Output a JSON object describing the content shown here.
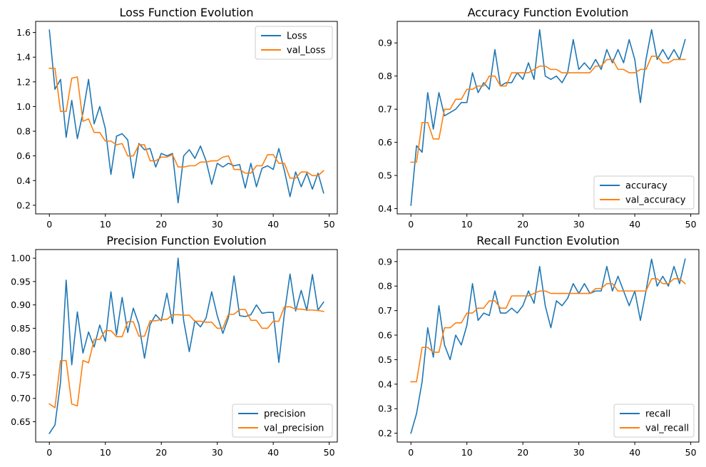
{
  "colors": {
    "series1": "#1f77b4",
    "series2": "#ff7f0e"
  },
  "chart_data": [
    {
      "type": "line",
      "title": "Loss Function Evolution",
      "xlim": [
        -2.45,
        51.45
      ],
      "ylim": [
        0.13,
        1.69
      ],
      "xticks": [
        0,
        10,
        20,
        30,
        40,
        50
      ],
      "yticks": [
        0.2,
        0.4,
        0.6,
        0.8,
        1.0,
        1.2,
        1.4,
        1.6
      ],
      "ytick_labels": [
        "0.2",
        "0.4",
        "0.6",
        "0.8",
        "1.0",
        "1.2",
        "1.4",
        "1.6"
      ],
      "legend_loc": "upper-right",
      "series": [
        {
          "name": "Loss",
          "values": [
            1.62,
            1.14,
            1.22,
            0.75,
            1.05,
            0.74,
            0.95,
            1.22,
            0.86,
            1.0,
            0.82,
            0.45,
            0.76,
            0.78,
            0.73,
            0.42,
            0.7,
            0.65,
            0.66,
            0.51,
            0.62,
            0.6,
            0.62,
            0.22,
            0.6,
            0.65,
            0.58,
            0.68,
            0.56,
            0.37,
            0.54,
            0.51,
            0.54,
            0.52,
            0.53,
            0.34,
            0.54,
            0.35,
            0.5,
            0.52,
            0.49,
            0.66,
            0.48,
            0.27,
            0.47,
            0.35,
            0.46,
            0.33,
            0.46,
            0.3
          ]
        },
        {
          "name": "val_Loss",
          "values": [
            1.31,
            1.31,
            0.96,
            0.96,
            1.23,
            1.24,
            0.88,
            0.9,
            0.79,
            0.79,
            0.72,
            0.72,
            0.69,
            0.7,
            0.6,
            0.6,
            0.69,
            0.69,
            0.56,
            0.56,
            0.59,
            0.59,
            0.61,
            0.51,
            0.51,
            0.52,
            0.52,
            0.55,
            0.55,
            0.56,
            0.56,
            0.59,
            0.6,
            0.49,
            0.49,
            0.46,
            0.46,
            0.52,
            0.52,
            0.61,
            0.61,
            0.54,
            0.54,
            0.42,
            0.42,
            0.47,
            0.47,
            0.44,
            0.44,
            0.48
          ]
        }
      ]
    },
    {
      "type": "line",
      "title": "Accuracy Function Evolution",
      "xlim": [
        -2.45,
        51.45
      ],
      "ylim": [
        0.384,
        0.965
      ],
      "xticks": [
        0,
        10,
        20,
        30,
        40,
        50
      ],
      "yticks": [
        0.4,
        0.5,
        0.6,
        0.7,
        0.8,
        0.9
      ],
      "ytick_labels": [
        "0.4",
        "0.5",
        "0.6",
        "0.7",
        "0.8",
        "0.9"
      ],
      "legend_loc": "lower-right",
      "series": [
        {
          "name": "accuracy",
          "values": [
            0.41,
            0.59,
            0.57,
            0.75,
            0.64,
            0.75,
            0.68,
            0.69,
            0.7,
            0.72,
            0.72,
            0.81,
            0.75,
            0.78,
            0.76,
            0.88,
            0.77,
            0.78,
            0.78,
            0.81,
            0.79,
            0.84,
            0.79,
            0.94,
            0.8,
            0.79,
            0.8,
            0.78,
            0.81,
            0.91,
            0.82,
            0.84,
            0.82,
            0.85,
            0.82,
            0.88,
            0.84,
            0.88,
            0.84,
            0.91,
            0.85,
            0.72,
            0.85,
            0.94,
            0.85,
            0.88,
            0.85,
            0.88,
            0.85,
            0.91
          ]
        },
        {
          "name": "val_accuracy",
          "values": [
            0.54,
            0.54,
            0.66,
            0.66,
            0.61,
            0.61,
            0.7,
            0.7,
            0.73,
            0.73,
            0.76,
            0.76,
            0.77,
            0.77,
            0.8,
            0.8,
            0.77,
            0.77,
            0.81,
            0.81,
            0.81,
            0.81,
            0.82,
            0.83,
            0.83,
            0.82,
            0.82,
            0.81,
            0.81,
            0.81,
            0.81,
            0.81,
            0.81,
            0.83,
            0.83,
            0.85,
            0.85,
            0.82,
            0.82,
            0.81,
            0.81,
            0.82,
            0.82,
            0.86,
            0.86,
            0.84,
            0.84,
            0.85,
            0.85,
            0.85
          ]
        }
      ]
    },
    {
      "type": "line",
      "title": "Precision Function Evolution",
      "xlim": [
        -2.45,
        51.45
      ],
      "ylim": [
        0.6065,
        1.0185
      ],
      "xticks": [
        0,
        10,
        20,
        30,
        40,
        50
      ],
      "yticks": [
        0.65,
        0.7,
        0.75,
        0.8,
        0.85,
        0.9,
        0.95,
        1.0
      ],
      "ytick_labels": [
        "0.65",
        "0.70",
        "0.75",
        "0.80",
        "0.85",
        "0.90",
        "0.95",
        "1.00"
      ],
      "legend_loc": "lower-right",
      "series": [
        {
          "name": "precision",
          "values": [
            0.625,
            0.643,
            0.735,
            0.953,
            0.772,
            0.885,
            0.797,
            0.842,
            0.81,
            0.857,
            0.822,
            0.928,
            0.836,
            0.916,
            0.841,
            0.893,
            0.858,
            0.786,
            0.858,
            0.879,
            0.866,
            0.925,
            0.86,
            1.0,
            0.866,
            0.8,
            0.866,
            0.853,
            0.872,
            0.928,
            0.877,
            0.839,
            0.873,
            0.962,
            0.877,
            0.875,
            0.879,
            0.9,
            0.882,
            0.884,
            0.884,
            0.777,
            0.882,
            0.966,
            0.887,
            0.931,
            0.888,
            0.965,
            0.889,
            0.906
          ]
        },
        {
          "name": "val_precision",
          "values": [
            0.688,
            0.68,
            0.781,
            0.781,
            0.688,
            0.684,
            0.781,
            0.776,
            0.826,
            0.826,
            0.845,
            0.845,
            0.832,
            0.832,
            0.864,
            0.864,
            0.833,
            0.833,
            0.866,
            0.866,
            0.869,
            0.869,
            0.879,
            0.879,
            0.878,
            0.878,
            0.865,
            0.865,
            0.863,
            0.863,
            0.85,
            0.85,
            0.88,
            0.88,
            0.89,
            0.89,
            0.867,
            0.867,
            0.85,
            0.85,
            0.865,
            0.865,
            0.896,
            0.896,
            0.891,
            0.891,
            0.889,
            0.889,
            0.888,
            0.886
          ]
        }
      ]
    },
    {
      "type": "line",
      "title": "Recall Function Evolution",
      "xlim": [
        -2.45,
        51.45
      ],
      "ylim": [
        0.164,
        0.949
      ],
      "xticks": [
        0,
        10,
        20,
        30,
        40,
        50
      ],
      "yticks": [
        0.2,
        0.3,
        0.4,
        0.5,
        0.6,
        0.7,
        0.8,
        0.9
      ],
      "ytick_labels": [
        "0.2",
        "0.3",
        "0.4",
        "0.5",
        "0.6",
        "0.7",
        "0.8",
        "0.9"
      ],
      "legend_loc": "lower-right",
      "series": [
        {
          "name": "recall",
          "values": [
            0.2,
            0.28,
            0.41,
            0.63,
            0.51,
            0.72,
            0.56,
            0.5,
            0.6,
            0.56,
            0.64,
            0.81,
            0.66,
            0.69,
            0.68,
            0.78,
            0.69,
            0.69,
            0.71,
            0.69,
            0.72,
            0.78,
            0.73,
            0.88,
            0.72,
            0.63,
            0.74,
            0.72,
            0.75,
            0.81,
            0.77,
            0.81,
            0.77,
            0.78,
            0.78,
            0.88,
            0.78,
            0.84,
            0.78,
            0.72,
            0.78,
            0.66,
            0.78,
            0.91,
            0.8,
            0.84,
            0.8,
            0.88,
            0.81,
            0.91
          ]
        },
        {
          "name": "val_recall",
          "values": [
            0.41,
            0.41,
            0.55,
            0.55,
            0.53,
            0.53,
            0.63,
            0.63,
            0.65,
            0.65,
            0.69,
            0.69,
            0.71,
            0.71,
            0.74,
            0.74,
            0.71,
            0.71,
            0.76,
            0.76,
            0.76,
            0.76,
            0.77,
            0.78,
            0.78,
            0.77,
            0.77,
            0.77,
            0.77,
            0.77,
            0.77,
            0.77,
            0.77,
            0.79,
            0.79,
            0.81,
            0.81,
            0.78,
            0.78,
            0.78,
            0.78,
            0.78,
            0.78,
            0.83,
            0.83,
            0.81,
            0.81,
            0.83,
            0.83,
            0.81
          ]
        }
      ]
    }
  ]
}
